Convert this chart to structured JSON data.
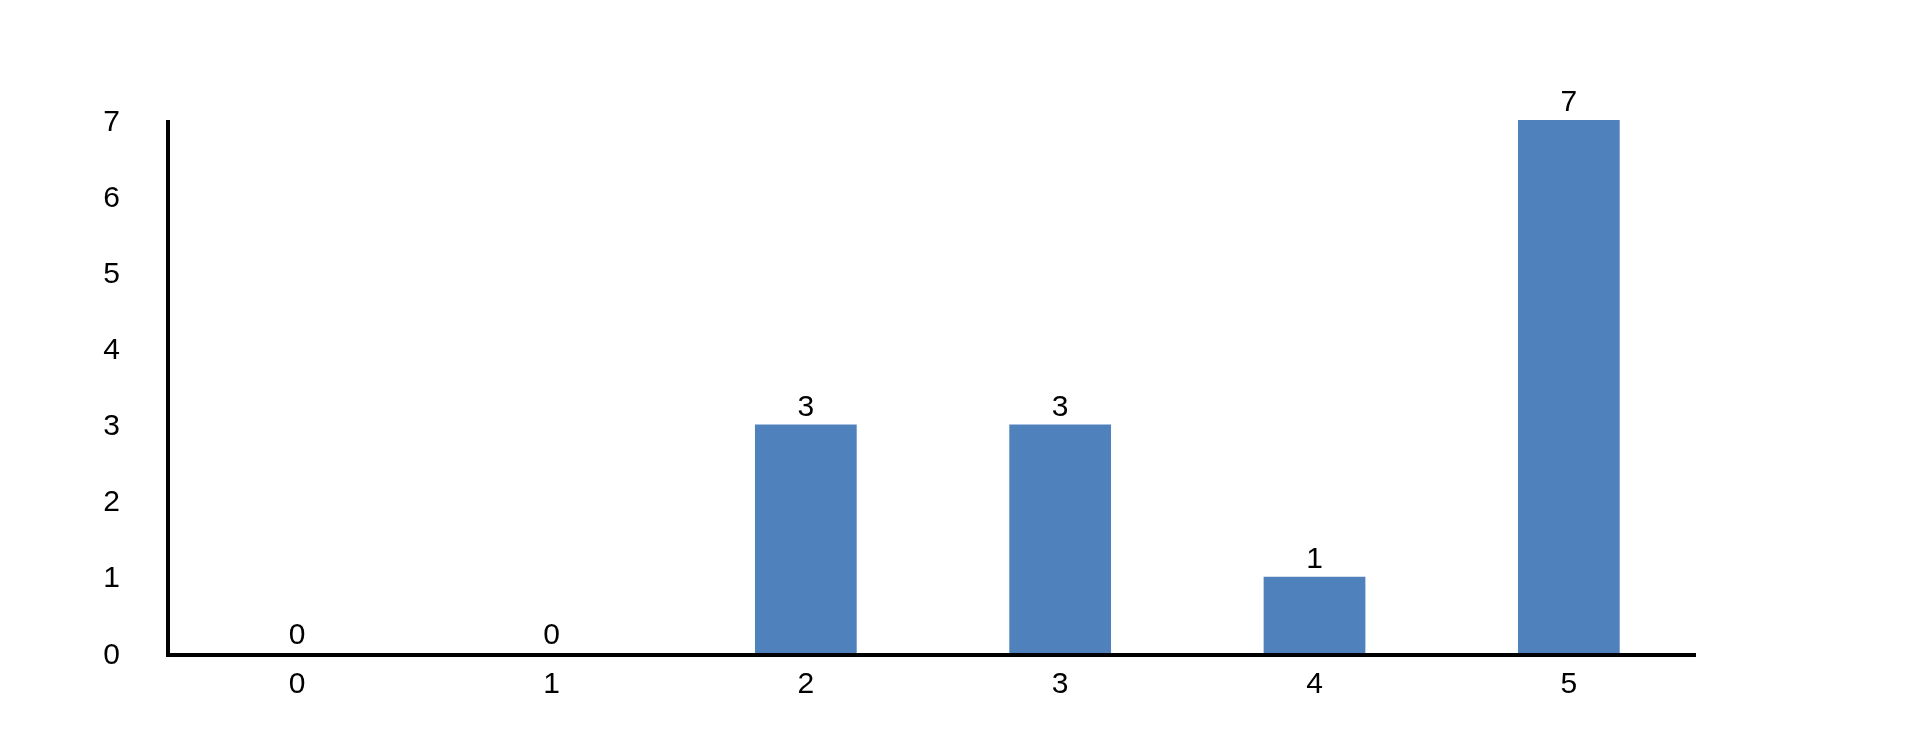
{
  "chart_data": {
    "type": "bar",
    "categories": [
      "0",
      "1",
      "2",
      "3",
      "4",
      "5"
    ],
    "values": [
      0,
      0,
      3,
      3,
      1,
      7
    ],
    "color": "#4f81bd",
    "ylim": [
      0,
      7
    ],
    "yticks": [
      0,
      1,
      2,
      3,
      4,
      5,
      6,
      7
    ],
    "grid": false,
    "data_labels": true,
    "legend": false
  }
}
